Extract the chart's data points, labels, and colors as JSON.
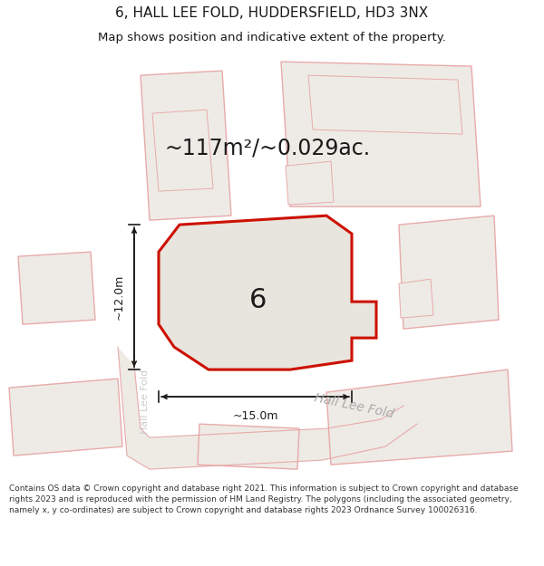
{
  "title": "6, HALL LEE FOLD, HUDDERSFIELD, HD3 3NX",
  "subtitle": "Map shows position and indicative extent of the property.",
  "area_text": "~117m²/~0.029ac.",
  "number_label": "6",
  "dim_vertical": "~12.0m",
  "dim_horizontal": "~15.0m",
  "street_label_diag": "Hall Lee Fold",
  "street_label_vert": "Hall Lee Fold",
  "footer": "Contains OS data © Crown copyright and database right 2021. This information is subject to Crown copyright and database rights 2023 and is reproduced with the permission of HM Land Registry. The polygons (including the associated geometry, namely x, y co-ordinates) are subject to Crown copyright and database rights 2023 Ordnance Survey 100026316.",
  "map_bg": "#f5f2ee",
  "plot_fill": "#e8e4de",
  "plot_stroke": "#cc1100",
  "bld_stroke": "#e8aaaa",
  "bld_fill": "#eeebe6",
  "footer_bg": "#ffffff",
  "title_bg": "#ffffff",
  "text_color": "#1a1a1a",
  "dim_color": "#1a1a1a",
  "street_diag_color": "#aaaaaa",
  "street_vert_color": "#cccccc",
  "title_size": 11,
  "subtitle_size": 9.5,
  "area_text_size": 17,
  "number_size": 22,
  "dim_text_size": 9,
  "street_diag_size": 10,
  "street_vert_size": 8,
  "footer_size": 6.5
}
